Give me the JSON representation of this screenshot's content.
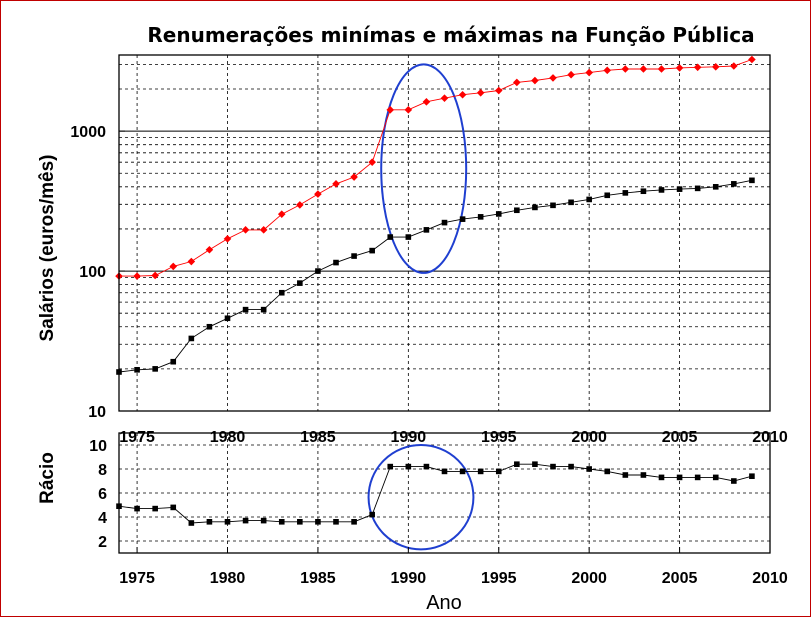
{
  "chart_data": [
    {
      "type": "line",
      "title": "Renumerações minímas e máximas na Função Pública",
      "xlabel": "",
      "ylabel": "Salários (euros/mês)",
      "yscale": "log",
      "ylim": [
        10,
        3500
      ],
      "xlim": [
        1974,
        2010
      ],
      "x_ticks": [
        1975,
        1980,
        1985,
        1990,
        1995,
        2000,
        2005,
        2010
      ],
      "y_ticks": [
        10,
        100,
        1000
      ],
      "grid": true,
      "series": [
        {
          "color": "#ff0000",
          "marker": "diamond",
          "x": [
            1974,
            1975,
            1976,
            1977,
            1978,
            1979,
            1980,
            1981,
            1982,
            1983,
            1984,
            1985,
            1986,
            1987,
            1988,
            1989,
            1990,
            1991,
            1992,
            1993,
            1994,
            1995,
            1996,
            1997,
            1998,
            1999,
            2000,
            2001,
            2002,
            2003,
            2004,
            2005,
            2006,
            2007,
            2008,
            2009
          ],
          "y": [
            92,
            92,
            93,
            108,
            117,
            142,
            170,
            197,
            197,
            255,
            297,
            355,
            420,
            470,
            600,
            1420,
            1420,
            1620,
            1720,
            1820,
            1880,
            1950,
            2230,
            2300,
            2400,
            2530,
            2620,
            2720,
            2780,
            2780,
            2780,
            2830,
            2860,
            2880,
            2920,
            3250
          ]
        },
        {
          "color": "#000000",
          "marker": "square",
          "x": [
            1974,
            1975,
            1976,
            1977,
            1978,
            1979,
            1980,
            1981,
            1982,
            1983,
            1984,
            1985,
            1986,
            1987,
            1988,
            1989,
            1990,
            1991,
            1992,
            1993,
            1994,
            1995,
            1996,
            1997,
            1998,
            1999,
            2000,
            2001,
            2002,
            2003,
            2004,
            2005,
            2006,
            2007,
            2008,
            2009
          ],
          "y": [
            19,
            19.7,
            20,
            22.5,
            33,
            40,
            46,
            53,
            53,
            70,
            82,
            100,
            115,
            128,
            140,
            175,
            175,
            197,
            222,
            235,
            244,
            256,
            272,
            285,
            295,
            310,
            325,
            348,
            362,
            372,
            380,
            385,
            390,
            400,
            420,
            445
          ]
        }
      ],
      "annotations": [
        {
          "shape": "ellipse",
          "color": "#1f3fd0",
          "center": [
            1990.8,
            600
          ],
          "span_x": [
            1988.5,
            1993.2
          ],
          "span_y": [
            97,
            3000
          ]
        }
      ]
    },
    {
      "type": "line",
      "title": "",
      "xlabel": "Ano",
      "ylabel": "Rácio",
      "ylim": [
        1,
        11
      ],
      "xlim": [
        1974,
        2010
      ],
      "x_ticks": [
        1975,
        1980,
        1985,
        1990,
        1995,
        2000,
        2005,
        2010
      ],
      "y_ticks": [
        2,
        4,
        6,
        8,
        10
      ],
      "grid": true,
      "series": [
        {
          "color": "#000000",
          "marker": "square",
          "x": [
            1974,
            1975,
            1976,
            1977,
            1978,
            1979,
            1980,
            1981,
            1982,
            1983,
            1984,
            1985,
            1986,
            1987,
            1988,
            1989,
            1990,
            1991,
            1992,
            1993,
            1994,
            1995,
            1996,
            1997,
            1998,
            1999,
            2000,
            2001,
            2002,
            2003,
            2004,
            2005,
            2006,
            2007,
            2008,
            2009
          ],
          "y": [
            4.9,
            4.7,
            4.7,
            4.8,
            3.5,
            3.6,
            3.6,
            3.7,
            3.7,
            3.6,
            3.6,
            3.6,
            3.6,
            3.6,
            4.2,
            8.2,
            8.2,
            8.2,
            7.8,
            7.8,
            7.8,
            7.8,
            8.4,
            8.4,
            8.2,
            8.2,
            8.0,
            7.8,
            7.5,
            7.5,
            7.3,
            7.3,
            7.3,
            7.3,
            7.0,
            7.4
          ]
        }
      ],
      "annotations": [
        {
          "shape": "ellipse",
          "color": "#1f3fd0",
          "center": [
            1990.7,
            5.8
          ],
          "span_x": [
            1987.8,
            1993.6
          ],
          "span_y": [
            1.3,
            10.0
          ]
        }
      ]
    }
  ]
}
